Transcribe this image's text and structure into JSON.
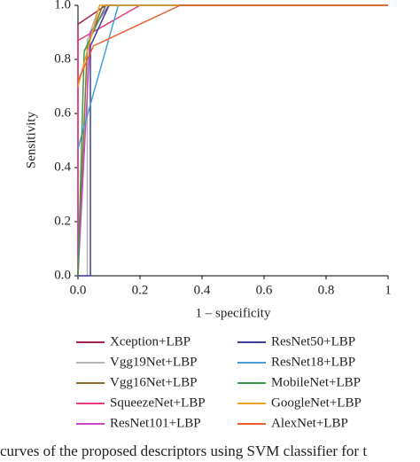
{
  "chart_data": {
    "type": "line",
    "x_label": "1 – specificity",
    "y_label": "Sensitivity",
    "caption": "curves of the proposed descriptors using SVM classifier for t",
    "xlim": [
      0,
      1
    ],
    "ylim": [
      0,
      1
    ],
    "xticks": [
      {
        "value": 0,
        "label": "0.0"
      },
      {
        "value": 0.2,
        "label": "0.2"
      },
      {
        "value": 0.4,
        "label": "0.4"
      },
      {
        "value": 0.6,
        "label": "0.6"
      },
      {
        "value": 0.8,
        "label": "0.8"
      },
      1
    ],
    "yticks": [
      {
        "value": 0,
        "label": "0.0"
      },
      {
        "value": 0.2,
        "label": "0.2"
      },
      {
        "value": 0.4,
        "label": "0.4"
      },
      {
        "value": 0.6,
        "label": "0.6"
      },
      {
        "value": 0.8,
        "label": "0.8"
      },
      {
        "value": 1,
        "label": "1.0"
      }
    ],
    "series": [
      {
        "name": "Xception+LBP",
        "color": "#a3234f",
        "x": [
          0,
          0,
          0.09,
          1
        ],
        "values": [
          0,
          0.93,
          1,
          1
        ]
      },
      {
        "name": "Vgg19Net+LBP",
        "color": "#b3b3b3",
        "x": [
          0,
          0.03,
          0.03,
          0.07,
          1
        ],
        "values": [
          0,
          0,
          0.87,
          1,
          1
        ]
      },
      {
        "name": "Vgg16Net+LBP",
        "color": "#8b6f2a",
        "x": [
          0,
          0.03,
          0.08,
          1
        ],
        "values": [
          0,
          0.85,
          1,
          1
        ]
      },
      {
        "name": "SqueezeNet+LBP",
        "color": "#e8377a",
        "x": [
          0,
          0,
          0.2,
          1
        ],
        "values": [
          0,
          0.87,
          1,
          1
        ]
      },
      {
        "name": "ResNet101+LBP",
        "color": "#c848c8",
        "x": [
          0,
          0.04,
          0.1,
          1
        ],
        "values": [
          0,
          0.9,
          1,
          1
        ]
      },
      {
        "name": "ResNet50+LBP",
        "color": "#3d3d9c",
        "x": [
          0,
          0.04,
          0.04,
          0.1,
          1
        ],
        "values": [
          0,
          0,
          0.85,
          1,
          1
        ]
      },
      {
        "name": "ResNet18+LBP",
        "color": "#3fa0d6",
        "x": [
          0,
          0.13,
          1
        ],
        "values": [
          0.47,
          1,
          1
        ]
      },
      {
        "name": "MobileNet+LBP",
        "color": "#3a9a4a",
        "x": [
          0,
          0.02,
          0.09,
          1
        ],
        "values": [
          0,
          0.83,
          1,
          1
        ]
      },
      {
        "name": "GoogleNet+LBP",
        "color": "#f0a020",
        "x": [
          0,
          0.03,
          0.07,
          1
        ],
        "values": [
          0.7,
          0.83,
          1,
          1
        ]
      },
      {
        "name": "AlexNet+LBP",
        "color": "#e86030",
        "x": [
          0,
          0.05,
          0.33,
          1
        ],
        "values": [
          0.72,
          0.85,
          1,
          1
        ]
      }
    ]
  }
}
